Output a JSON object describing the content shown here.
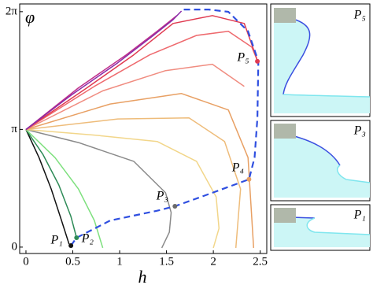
{
  "chart_data": {
    "type": "line",
    "y_label": "φ",
    "x_label": "h",
    "xlim": [
      -0.067,
      2.57
    ],
    "ylim": [
      -0.17,
      6.49
    ],
    "xticks": [
      0,
      0.5,
      1,
      1.5,
      2,
      2.5
    ],
    "yticks": [
      0,
      {
        "value": 3.1416,
        "label": "π"
      },
      {
        "value": 6.2832,
        "label": "2π"
      }
    ],
    "series": [
      {
        "color": "#111111",
        "x": [
          0,
          0.14,
          0.27,
          0.38,
          0.46
        ],
        "values": [
          3.14,
          2.39,
          1.55,
          0.71,
          0.08
        ]
      },
      {
        "color": "#2e8b57",
        "x": [
          0,
          0.18,
          0.35,
          0.48,
          0.54
        ],
        "values": [
          3.14,
          2.48,
          1.66,
          0.82,
          0.25
        ]
      },
      {
        "color": "#7ee07e",
        "x": [
          0,
          0.31,
          0.56,
          0.73,
          0.82
        ],
        "values": [
          3.14,
          2.39,
          1.55,
          0.71,
          -0.02
        ]
      },
      {
        "color": "#8a8a8a",
        "x": [
          0,
          0.56,
          1.15,
          1.49,
          1.55,
          1.53,
          1.45
        ],
        "values": [
          3.14,
          2.79,
          2.29,
          1.45,
          0.92,
          0.4,
          -0.02
        ]
      },
      {
        "color": "#f2d68a",
        "x": [
          0,
          0.73,
          1.4,
          1.82,
          2.03,
          2.06,
          2.0
        ],
        "values": [
          3.14,
          2.99,
          2.82,
          2.29,
          1.34,
          0.5,
          -0.02
        ]
      },
      {
        "color": "#eebc7a",
        "x": [
          0,
          0.98,
          1.74,
          2.12,
          2.29,
          2.24
        ],
        "values": [
          3.14,
          3.42,
          3.45,
          2.82,
          1.55,
          -0.02
        ]
      },
      {
        "color": "#e8a064",
        "x": [
          0,
          0.9,
          1.66,
          2.16,
          2.37,
          2.43
        ],
        "values": [
          3.14,
          3.82,
          4.1,
          3.66,
          2.39,
          -0.02
        ]
      },
      {
        "color": "#f08c80",
        "x": [
          0,
          0.82,
          1.49,
          1.99,
          2.33
        ],
        "values": [
          3.14,
          4.17,
          4.71,
          4.88,
          4.29
        ]
      },
      {
        "color": "#ee6a6e",
        "x": [
          0,
          0.73,
          1.32,
          1.82,
          2.16,
          2.41,
          2.48
        ],
        "values": [
          3.14,
          4.29,
          5.13,
          5.65,
          5.76,
          5.34,
          4.92
        ]
      },
      {
        "color": "#e03a50",
        "x": [
          0,
          0.65,
          1.15,
          1.57,
          1.99,
          2.33,
          2.45,
          2.47
        ],
        "values": [
          3.14,
          4.25,
          5.13,
          5.97,
          6.18,
          5.97,
          5.13,
          4.96
        ]
      },
      {
        "color": "#c0308a",
        "x": [
          0,
          0.56,
          1.07,
          1.4,
          1.61
        ],
        "values": [
          3.14,
          4.25,
          5.13,
          5.76,
          6.18
        ]
      },
      {
        "color": "#8a2aa8",
        "x": [
          0,
          0.48,
          0.98,
          1.36,
          1.57,
          1.66
        ],
        "values": [
          3.14,
          4.05,
          4.92,
          5.65,
          6.07,
          6.3
        ]
      },
      {
        "color": "#2f4fe0",
        "dashed": true,
        "x": [
          0.48,
          0.54,
          0.9,
          1.4,
          1.59,
          1.99,
          2.38,
          2.44,
          2.47,
          2.48,
          2.37,
          2.16,
          1.95,
          1.68
        ],
        "values": [
          0.04,
          0.25,
          0.71,
          0.97,
          1.09,
          1.45,
          1.81,
          2.39,
          3.44,
          4.96,
          5.76,
          6.28,
          6.34,
          6.34
        ]
      }
    ],
    "annotations": [
      {
        "label": "P₁",
        "x": 0.48,
        "y": 0.04,
        "color": "#111111"
      },
      {
        "label": "P₂",
        "x": 0.54,
        "y": 0.25,
        "color": "#2e8b57"
      },
      {
        "label": "P₃",
        "x": 1.59,
        "y": 1.09,
        "color": "#6a6a6a"
      },
      {
        "label": "P₄",
        "x": 2.38,
        "y": 1.81,
        "color": "#e8a064"
      },
      {
        "label": "P₅",
        "x": 2.47,
        "y": 4.96,
        "color": "#e03a50"
      }
    ]
  },
  "insets": [
    {
      "label": "P₅",
      "color": "#e03a50"
    },
    {
      "label": "P₃",
      "color": "#6a6a6a"
    },
    {
      "label": "P₁",
      "color": "#111111"
    }
  ]
}
